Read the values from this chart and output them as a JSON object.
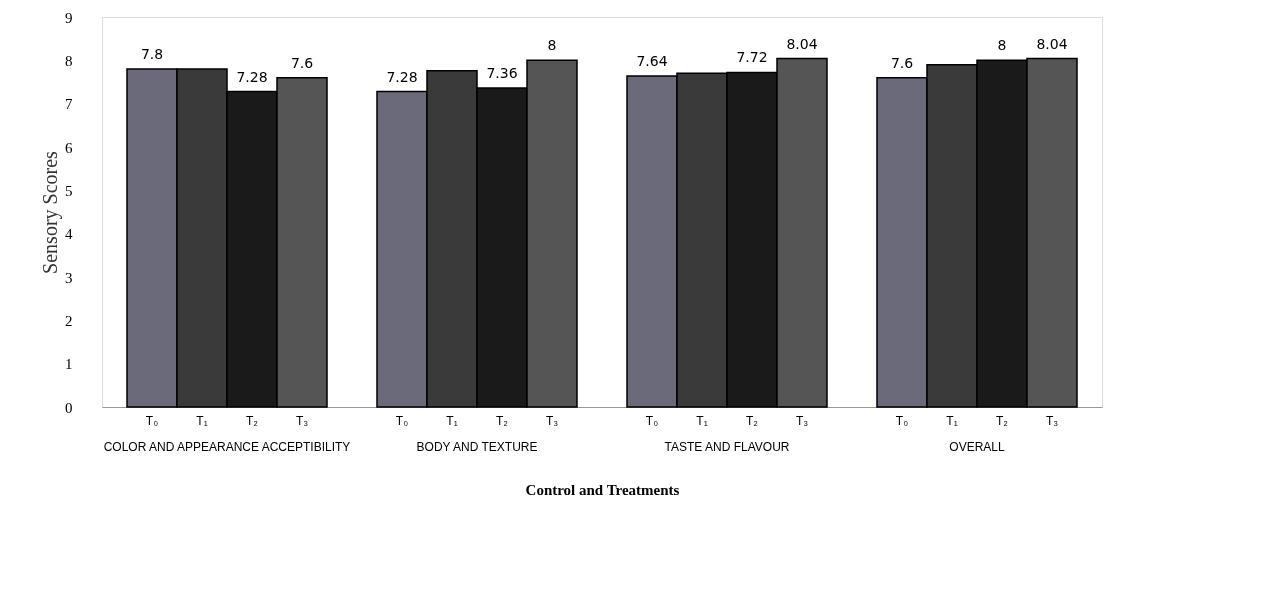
{
  "chart_data": {
    "type": "bar",
    "xlabel": "Control and Treatments",
    "ylabel": "Sensory Scores",
    "categories": [
      "COLOR AND APPEARANCE ACCEPTIBILITY",
      "BODY AND TEXTURE",
      "TASTE AND FLAVOUR",
      "OVERALL"
    ],
    "ylim": [
      0,
      9
    ],
    "yticks": [
      0,
      1,
      2,
      3,
      4,
      5,
      6,
      7,
      8,
      9
    ],
    "grid": false,
    "series": [
      {
        "name": "T₀",
        "color": "#6a6a7a",
        "values": [
          7.8,
          7.28,
          7.64,
          7.6
        ],
        "value_labels": [
          "7.8",
          "7.28",
          "7.64",
          "7.6"
        ]
      },
      {
        "name": "T₁",
        "color": "#3a3a3a",
        "values": [
          7.8,
          7.76,
          7.7,
          7.9
        ],
        "value_labels": [
          null,
          null,
          null,
          null
        ]
      },
      {
        "name": "T₂",
        "color": "#1a1a1a",
        "values": [
          7.28,
          7.36,
          7.72,
          8
        ],
        "value_labels": [
          "7.28",
          "7.36",
          "7.72",
          "8"
        ]
      },
      {
        "name": "T₃",
        "color": "#555555",
        "values": [
          7.6,
          8,
          8.04,
          8.04
        ],
        "value_labels": [
          "7.6",
          "8",
          "8.04",
          "8.04"
        ]
      }
    ]
  }
}
